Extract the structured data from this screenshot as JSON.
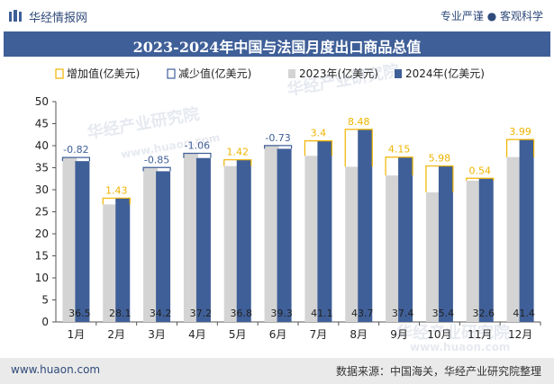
{
  "header": {
    "brand": "华经情报网",
    "slogan": "专业严谨 ● 客观科学",
    "title": "2023-2024年中国与法国月度出口商品总值"
  },
  "footer": {
    "site": "www.huaon.com",
    "source": "数据来源：中国海关，华经产业研究院整理"
  },
  "watermarks": [
    "华经产业研究院",
    "www.huaon.com"
  ],
  "colors": {
    "increase": "#f0b400",
    "decrease": "#3f5f98",
    "bar2023": "#d4d4d4",
    "bar2024": "#3f5f98",
    "axis_text": "#222222"
  },
  "chart_data": {
    "type": "bar",
    "categories": [
      "1月",
      "2月",
      "3月",
      "4月",
      "5月",
      "6月",
      "7月",
      "8月",
      "9月",
      "10月",
      "11月",
      "12月"
    ],
    "series": [
      {
        "name": "2023年(亿美元)",
        "values": [
          37.32,
          26.67,
          35.05,
          38.26,
          35.38,
          40.03,
          37.7,
          35.22,
          33.25,
          29.42,
          32.06,
          37.41
        ]
      },
      {
        "name": "2024年(亿美元)",
        "values": [
          36.5,
          28.1,
          34.2,
          37.2,
          36.8,
          39.3,
          41.1,
          43.7,
          37.4,
          35.4,
          32.6,
          41.4
        ]
      }
    ],
    "changes": [
      -0.82,
      1.43,
      -0.85,
      -1.06,
      1.42,
      -0.73,
      3.4,
      8.48,
      4.15,
      5.98,
      0.54,
      3.99
    ],
    "change_labels": [
      "-0.82",
      "1.43",
      "-0.85",
      "-1.06",
      "1.42",
      "-0.73",
      "3.4",
      "8.48",
      "4.15",
      "5.98",
      "0.54",
      "3.99"
    ],
    "value_labels_2024": [
      "36.5",
      "28.1",
      "34.2",
      "37.2",
      "36.8",
      "39.3",
      "41.1",
      "43.7",
      "37.4",
      "35.4",
      "32.6",
      "41.4"
    ],
    "legend": [
      "增加值(亿美元)",
      "减少值(亿美元)",
      "2023年(亿美元)",
      "2024年(亿美元)"
    ],
    "legend_position": "top",
    "ylim": [
      0,
      50
    ],
    "yticks": [
      "0",
      "5",
      "10",
      "15",
      "20",
      "25",
      "30",
      "35",
      "40",
      "45",
      "50"
    ],
    "grid": false
  }
}
